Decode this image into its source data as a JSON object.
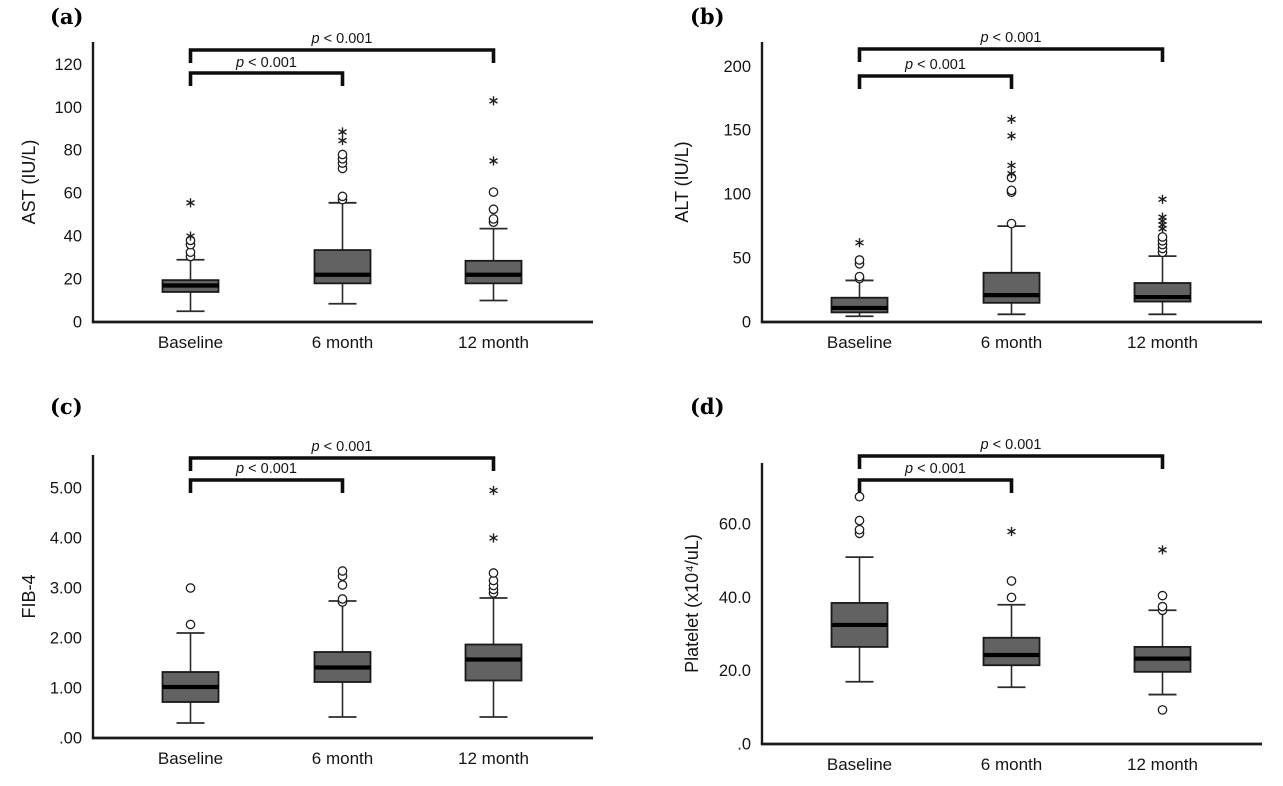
{
  "figure": {
    "background": "#ffffff",
    "colors": {
      "box_fill": "#626262",
      "box_border": "#1a1a1a",
      "median": "#000000",
      "whisker": "#2b2b2b",
      "axis": "#1a1a1a",
      "outlier": "#1f1f1f",
      "bracket": "#0d0d0d"
    }
  },
  "chart_data": [
    {
      "type": "box",
      "panel_label": "(a)",
      "ylabel": "AST (IU/L)",
      "xlabel": "",
      "categories": [
        "Baseline",
        "6 month",
        "12 month"
      ],
      "ylim": [
        0,
        130.4
      ],
      "yticks": [
        {
          "value": 0,
          "label": "0"
        },
        {
          "value": 20,
          "label": "20"
        },
        {
          "value": 40,
          "label": "40"
        },
        {
          "value": 60,
          "label": "60"
        },
        {
          "value": 80,
          "label": "80"
        },
        {
          "value": 100,
          "label": "100"
        },
        {
          "value": 120,
          "label": "120"
        }
      ],
      "series": [
        {
          "category": "Baseline",
          "whisker_low": 5,
          "q1": 14,
          "median": 17,
          "q3": 19.5,
          "whisker_high": 29,
          "outliers": [
            30.5,
            32.5,
            36,
            38
          ],
          "extremes": [
            40,
            55.5
          ]
        },
        {
          "category": "6 month",
          "whisker_low": 8.5,
          "q1": 18,
          "median": 22,
          "q3": 33.5,
          "whisker_high": 55.5,
          "outliers": [
            57,
            58.5,
            71.5,
            74,
            76,
            78
          ],
          "extremes": [
            84.5,
            88.5
          ]
        },
        {
          "category": "12 month",
          "whisker_low": 10,
          "q1": 18,
          "median": 22,
          "q3": 28.5,
          "whisker_high": 43.5,
          "outliers": [
            46.5,
            48,
            52.5,
            60.5
          ],
          "extremes": [
            75,
            103
          ]
        }
      ],
      "comparisons": [
        {
          "between": [
            "Baseline",
            "6 month"
          ],
          "label": "p < 0.001",
          "position": "lower"
        },
        {
          "between": [
            "Baseline",
            "12 month"
          ],
          "label": "p < 0.001",
          "position": "upper"
        }
      ]
    },
    {
      "type": "box",
      "panel_label": "(b)",
      "ylabel": "ALT (IU/L)",
      "xlabel": "",
      "categories": [
        "Baseline",
        "6 month",
        "12 month"
      ],
      "ylim": [
        0,
        219
      ],
      "yticks": [
        {
          "value": 0,
          "label": "0"
        },
        {
          "value": 50,
          "label": "50"
        },
        {
          "value": 100,
          "label": "100"
        },
        {
          "value": 150,
          "label": "150"
        },
        {
          "value": 200,
          "label": "200"
        }
      ],
      "series": [
        {
          "category": "Baseline",
          "whisker_low": 4.5,
          "q1": 7.5,
          "median": 11,
          "q3": 19,
          "whisker_high": 32.5,
          "outliers": [
            34,
            35.5,
            45.5,
            48.5
          ],
          "extremes": [
            62
          ]
        },
        {
          "category": "6 month",
          "whisker_low": 6,
          "q1": 15,
          "median": 21,
          "q3": 38.5,
          "whisker_high": 75,
          "outliers": [
            77,
            101.5,
            103,
            113
          ],
          "extremes": [
            116,
            122.5,
            145.5,
            158.5
          ]
        },
        {
          "category": "12 month",
          "whisker_low": 6,
          "q1": 16,
          "median": 19.5,
          "q3": 30.5,
          "whisker_high": 51.5,
          "outliers": [
            54.5,
            57.5,
            60.5,
            63.5,
            66.5
          ],
          "extremes": [
            73,
            76,
            79,
            82,
            96
          ]
        }
      ],
      "comparisons": [
        {
          "between": [
            "Baseline",
            "6 month"
          ],
          "label": "p < 0.001",
          "position": "lower"
        },
        {
          "between": [
            "Baseline",
            "12 month"
          ],
          "label": "p < 0.001",
          "position": "upper"
        }
      ]
    },
    {
      "type": "box",
      "panel_label": "(c)",
      "ylabel": "FIB-4",
      "xlabel": "",
      "categories": [
        "Baseline",
        "6 month",
        "12 month"
      ],
      "ylim": [
        0,
        5.66
      ],
      "yticks": [
        {
          "value": 0,
          "label": ".00"
        },
        {
          "value": 1,
          "label": "1.00"
        },
        {
          "value": 2,
          "label": "2.00"
        },
        {
          "value": 3,
          "label": "3.00"
        },
        {
          "value": 4,
          "label": "4.00"
        },
        {
          "value": 5,
          "label": "5.00"
        }
      ],
      "series": [
        {
          "category": "Baseline",
          "whisker_low": 0.3,
          "q1": 0.72,
          "median": 1.02,
          "q3": 1.32,
          "whisker_high": 2.1,
          "outliers": [
            2.27,
            3.0
          ],
          "extremes": []
        },
        {
          "category": "6 month",
          "whisker_low": 0.42,
          "q1": 1.12,
          "median": 1.41,
          "q3": 1.72,
          "whisker_high": 2.74,
          "outliers": [
            2.72,
            2.78,
            3.06,
            3.24,
            3.34
          ],
          "extremes": []
        },
        {
          "category": "12 month",
          "whisker_low": 0.42,
          "q1": 1.15,
          "median": 1.57,
          "q3": 1.87,
          "whisker_high": 2.8,
          "outliers": [
            2.9,
            2.97,
            3.05,
            3.15,
            3.3
          ],
          "extremes": [
            4.0,
            4.95
          ]
        }
      ],
      "comparisons": [
        {
          "between": [
            "Baseline",
            "6 month"
          ],
          "label": "p < 0.001",
          "position": "lower"
        },
        {
          "between": [
            "Baseline",
            "12 month"
          ],
          "label": "p < 0.001",
          "position": "upper"
        }
      ]
    },
    {
      "type": "box",
      "panel_label": "(d)",
      "ylabel": "Platelet (x10⁴/uL)",
      "xlabel": "",
      "categories": [
        "Baseline",
        "6 month",
        "12 month"
      ],
      "ylim": [
        0,
        76.7
      ],
      "yticks": [
        {
          "value": 0,
          "label": ".0"
        },
        {
          "value": 20,
          "label": "20.0"
        },
        {
          "value": 40,
          "label": "40.0"
        },
        {
          "value": 60,
          "label": "60.0"
        }
      ],
      "series": [
        {
          "category": "Baseline",
          "whisker_low": 17,
          "q1": 26.5,
          "median": 32.5,
          "q3": 38.5,
          "whisker_high": 51,
          "outliers": [
            57.5,
            58.5,
            61,
            67.5
          ],
          "extremes": []
        },
        {
          "category": "6 month",
          "whisker_low": 15.5,
          "q1": 21.5,
          "median": 24.3,
          "q3": 29,
          "whisker_high": 38,
          "outliers": [
            40,
            44.5
          ],
          "extremes": [
            58
          ]
        },
        {
          "category": "12 month",
          "whisker_low": 13.5,
          "q1": 19.7,
          "median": 23.3,
          "q3": 26.5,
          "whisker_high": 36.5,
          "outliers": [
            9.3,
            36.5,
            37.5,
            40.5
          ],
          "extremes": [
            53
          ]
        }
      ],
      "comparisons": [
        {
          "between": [
            "Baseline",
            "6 month"
          ],
          "label": "p < 0.001",
          "position": "lower"
        },
        {
          "between": [
            "Baseline",
            "12 month"
          ],
          "label": "p < 0.001",
          "position": "upper"
        }
      ]
    }
  ]
}
